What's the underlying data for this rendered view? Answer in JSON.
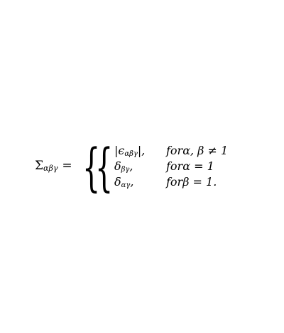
{
  "equation": {
    "lhs": {
      "symbol": "Σ",
      "subscript": "αβγ",
      "equals": "="
    },
    "braces": [
      "{",
      "{"
    ],
    "cases": [
      {
        "expr": "|ϵ",
        "sub": "αβγ",
        "tail": "|,",
        "condition": "forα, β ≠ 1"
      },
      {
        "expr": "δ",
        "sub": "βγ",
        "tail": ",",
        "condition": "forα = 1"
      },
      {
        "expr": "δ",
        "sub": "αγ",
        "tail": ",",
        "condition": "forβ = 1."
      }
    ]
  }
}
